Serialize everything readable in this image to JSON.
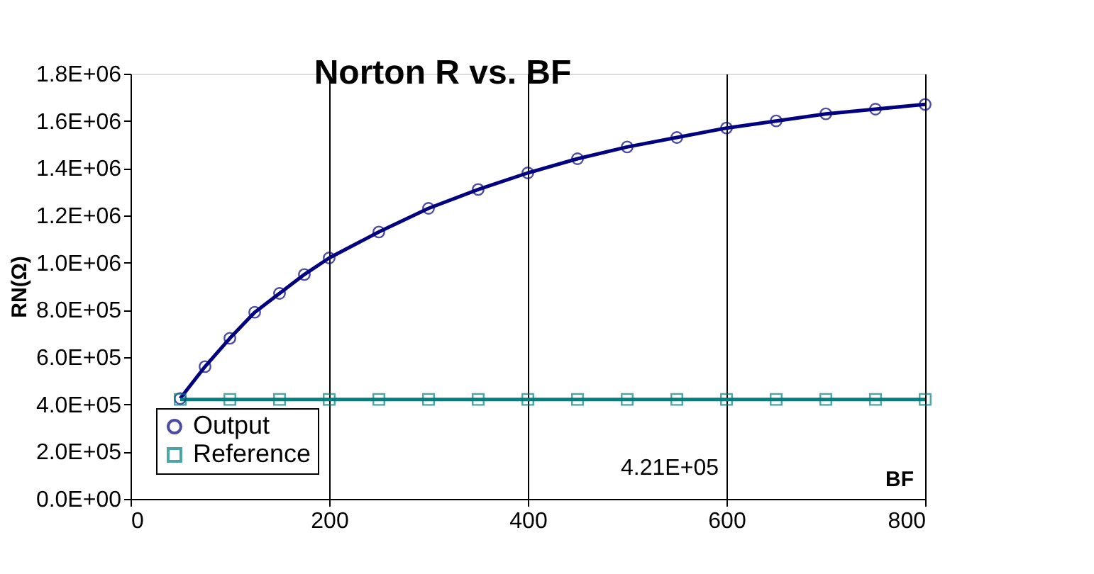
{
  "chart_data": {
    "type": "line",
    "title": "Norton R vs. BF",
    "xlabel": "BF",
    "ylabel": "RN(Ω)",
    "xlim": [
      0,
      800
    ],
    "xticks": [
      0,
      200,
      400,
      600,
      800
    ],
    "ylim": [
      0,
      1800000
    ],
    "yticks": [
      {
        "value": 0,
        "label": "0.0E+00"
      },
      {
        "value": 200000,
        "label": "2.0E+05"
      },
      {
        "value": 400000,
        "label": "4.0E+05"
      },
      {
        "value": 600000,
        "label": "6.0E+05"
      },
      {
        "value": 800000,
        "label": "8.0E+05"
      },
      {
        "value": 1000000,
        "label": "1.0E+06"
      },
      {
        "value": 1200000,
        "label": "1.2E+06"
      },
      {
        "value": 1400000,
        "label": "1.4E+06"
      },
      {
        "value": 1600000,
        "label": "1.6E+06"
      },
      {
        "value": 1800000,
        "label": "1.8E+06"
      }
    ],
    "grid": "x",
    "legend": "bottom left",
    "line_style": "solid",
    "annotations": [
      {
        "text": "4.21E+05",
        "x": 560,
        "y": 421000
      }
    ],
    "series": [
      {
        "name": "Output",
        "color": "#000080",
        "marker": "circle",
        "x": [
          50,
          75,
          100,
          125,
          150,
          175,
          200,
          250,
          300,
          350,
          400,
          450,
          500,
          550,
          600,
          650,
          700,
          750,
          800
        ],
        "values": [
          425000,
          560000,
          680000,
          790000,
          870000,
          950000,
          1020000,
          1130000,
          1230000,
          1310000,
          1380000,
          1440000,
          1490000,
          1530000,
          1570000,
          1600000,
          1630000,
          1650000,
          1670000
        ]
      },
      {
        "name": "Reference",
        "color": "#008080",
        "marker": "square",
        "x": [
          50,
          100,
          150,
          200,
          250,
          300,
          350,
          400,
          450,
          500,
          550,
          600,
          650,
          700,
          750,
          800
        ],
        "values": [
          421000,
          421000,
          421000,
          421000,
          421000,
          421000,
          421000,
          421000,
          421000,
          421000,
          421000,
          421000,
          421000,
          421000,
          421000,
          421000
        ]
      }
    ]
  }
}
